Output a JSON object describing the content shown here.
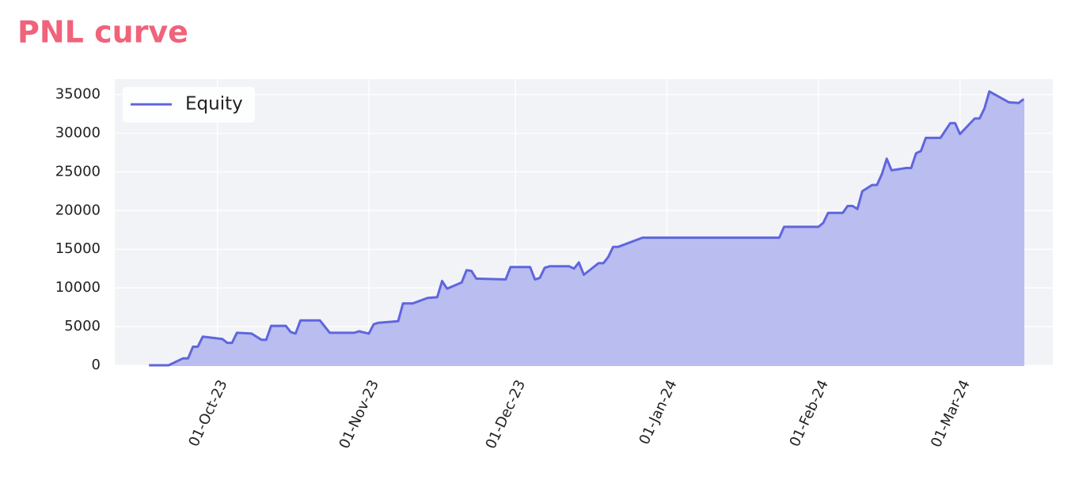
{
  "chart_data": {
    "type": "line",
    "title": "PNL curve",
    "x": [
      "2023-09-17",
      "2023-09-21",
      "2023-09-24",
      "2023-09-25",
      "2023-09-26",
      "2023-09-27",
      "2023-09-28",
      "2023-10-02",
      "2023-10-03",
      "2023-10-04",
      "2023-10-05",
      "2023-10-08",
      "2023-10-10",
      "2023-10-11",
      "2023-10-12",
      "2023-10-15",
      "2023-10-16",
      "2023-10-17",
      "2023-10-18",
      "2023-10-22",
      "2023-10-24",
      "2023-10-29",
      "2023-10-30",
      "2023-11-01",
      "2023-11-02",
      "2023-11-03",
      "2023-11-05",
      "2023-11-07",
      "2023-11-08",
      "2023-11-10",
      "2023-11-13",
      "2023-11-15",
      "2023-11-16",
      "2023-11-17",
      "2023-11-20",
      "2023-11-21",
      "2023-11-22",
      "2023-11-23",
      "2023-11-29",
      "2023-11-30",
      "2023-12-04",
      "2023-12-05",
      "2023-12-06",
      "2023-12-07",
      "2023-12-08",
      "2023-12-12",
      "2023-12-13",
      "2023-12-14",
      "2023-12-15",
      "2023-12-18",
      "2023-12-19",
      "2023-12-20",
      "2023-12-21",
      "2023-12-22",
      "2023-12-27",
      "2024-01-24",
      "2024-01-25",
      "2024-02-01",
      "2024-02-02",
      "2024-02-03",
      "2024-02-06",
      "2024-02-07",
      "2024-02-08",
      "2024-02-09",
      "2024-02-10",
      "2024-02-12",
      "2024-02-13",
      "2024-02-14",
      "2024-02-15",
      "2024-02-16",
      "2024-02-19",
      "2024-02-20",
      "2024-02-21",
      "2024-02-22",
      "2024-02-23",
      "2024-02-26",
      "2024-02-28",
      "2024-02-29",
      "2024-03-01",
      "2024-03-04",
      "2024-03-05",
      "2024-03-06",
      "2024-03-07",
      "2024-03-11",
      "2024-03-13",
      "2024-03-14"
    ],
    "series": [
      {
        "name": "Equity",
        "color": "#5f66dd",
        "fill": "#b9bdf0",
        "values": [
          0,
          0,
          900,
          900,
          2400,
          2400,
          3700,
          3400,
          2900,
          2900,
          4200,
          4100,
          3300,
          3300,
          5100,
          5100,
          4300,
          4100,
          5800,
          5800,
          4200,
          4200,
          4400,
          4100,
          5300,
          5500,
          5600,
          5700,
          8000,
          8000,
          8700,
          8800,
          10900,
          9900,
          10700,
          12300,
          12200,
          11200,
          11100,
          12700,
          12700,
          11100,
          11300,
          12600,
          12800,
          12800,
          12500,
          13300,
          11700,
          13200,
          13200,
          14000,
          15300,
          15300,
          16500,
          16500,
          17900,
          17900,
          18400,
          19700,
          19700,
          20600,
          20600,
          20200,
          22500,
          23300,
          23300,
          24700,
          26700,
          25200,
          25500,
          25500,
          27400,
          27700,
          29400,
          29400,
          31300,
          31300,
          29900,
          31900,
          31900,
          33200,
          35400,
          34000,
          33900,
          34400
        ]
      }
    ],
    "xlim": [
      "2023-09-10",
      "2024-03-20"
    ],
    "xticks": [
      {
        "value": "2023-10-01",
        "label": "01-Oct-23"
      },
      {
        "value": "2023-11-01",
        "label": "01-Nov-23"
      },
      {
        "value": "2023-12-01",
        "label": "01-Dec-23"
      },
      {
        "value": "2024-01-01",
        "label": "01-Jan-24"
      },
      {
        "value": "2024-02-01",
        "label": "01-Feb-24"
      },
      {
        "value": "2024-03-01",
        "label": "01-Mar-24"
      }
    ],
    "ylim": [
      0,
      37000
    ],
    "yticks": [
      0,
      5000,
      10000,
      15000,
      20000,
      25000,
      30000,
      35000
    ],
    "grid": true,
    "legend": "upper left"
  }
}
